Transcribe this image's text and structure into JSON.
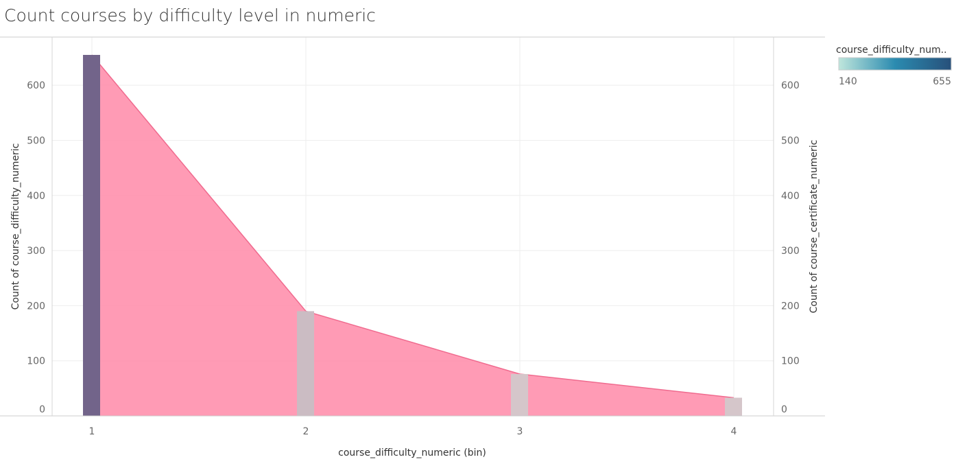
{
  "title": "Count courses by difficulty level in numeric",
  "chart_data": {
    "type": "bar",
    "x_label": "course_difficulty_numeric (bin)",
    "categories": [
      "1",
      "2",
      "3",
      "4"
    ],
    "x": [
      1,
      2,
      3,
      4
    ],
    "y_left_label": "Count of course_difficulty_numeric",
    "y_right_label": "Count of course_certificate_numeric",
    "yticks": [
      0,
      100,
      200,
      300,
      400,
      500,
      600
    ],
    "ylim": [
      0,
      655
    ],
    "series": [
      {
        "name": "Count of course_difficulty_numeric",
        "type": "bar",
        "values": [
          655,
          190,
          76,
          33
        ]
      },
      {
        "name": "Count of course_certificate_numeric",
        "type": "area",
        "values": [
          655,
          190,
          76,
          33
        ],
        "color": "#ff8aa8"
      }
    ],
    "legend": {
      "title": "course_difficulty_num..",
      "min_label": "140",
      "max_label": "655",
      "color_min": "#bfe6dc",
      "color_max": "#27507a",
      "placement": "top-right"
    },
    "grid": true
  }
}
